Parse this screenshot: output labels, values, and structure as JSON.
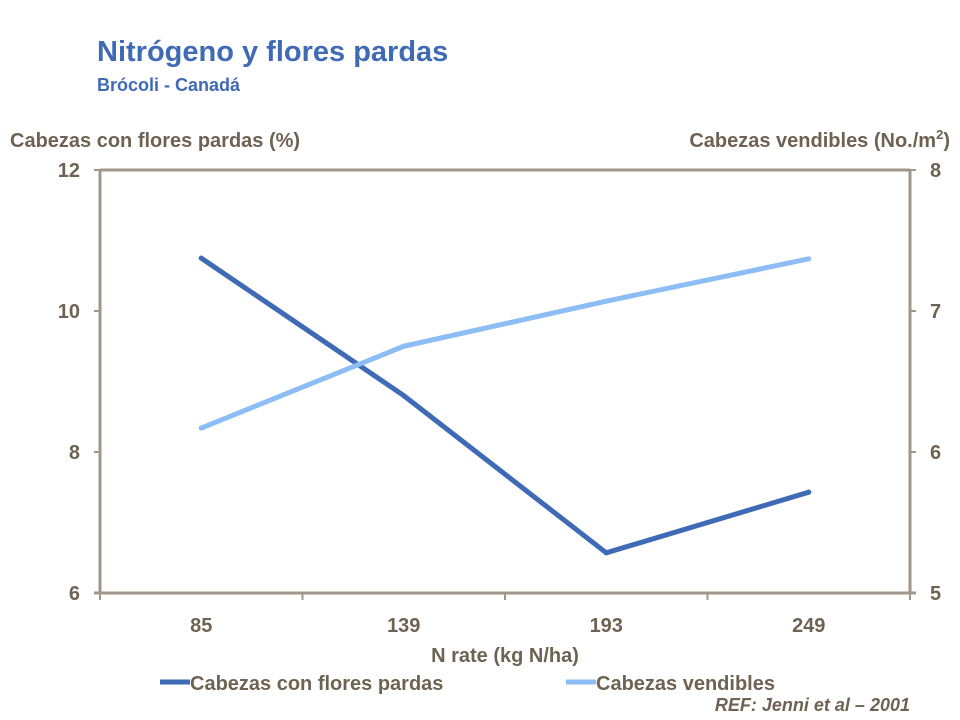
{
  "title": "Nitrógeno y flores pardas",
  "subtitle": "Brócoli - Canadá",
  "reference": "REF: Jenni et al – 2001",
  "chart_data": {
    "type": "line",
    "title": "Nitrógeno y flores pardas",
    "subtitle": "Brócoli - Canadá",
    "xlabel": "N rate (kg N/ha)",
    "ylabel_left": "Cabezas con flores pardas (%)",
    "ylabel_right_main": "Cabezas vendibles (No./m",
    "ylabel_right_sup": "2",
    "ylabel_right_end": ")",
    "categories": [
      "85",
      "139",
      "193",
      "249"
    ],
    "y_left": {
      "range": [
        6,
        12
      ],
      "ticks": [
        "6",
        "8",
        "10",
        "12"
      ]
    },
    "y_right": {
      "range": [
        5,
        8
      ],
      "ticks": [
        "5",
        "6",
        "7",
        "8"
      ]
    },
    "grid": false,
    "legend_position": "bottom",
    "series": [
      {
        "name": "Cabezas con flores pardas",
        "axis": "left",
        "color": "#3F6AB5",
        "values": [
          10.75,
          8.8,
          6.57,
          7.43
        ]
      },
      {
        "name": "Cabezas vendibles",
        "axis": "right",
        "color": "#8DBDF5",
        "values": [
          6.17,
          6.75,
          7.07,
          7.37
        ]
      }
    ],
    "axis_color": "#A0968A",
    "text_color": "#6E6353"
  }
}
